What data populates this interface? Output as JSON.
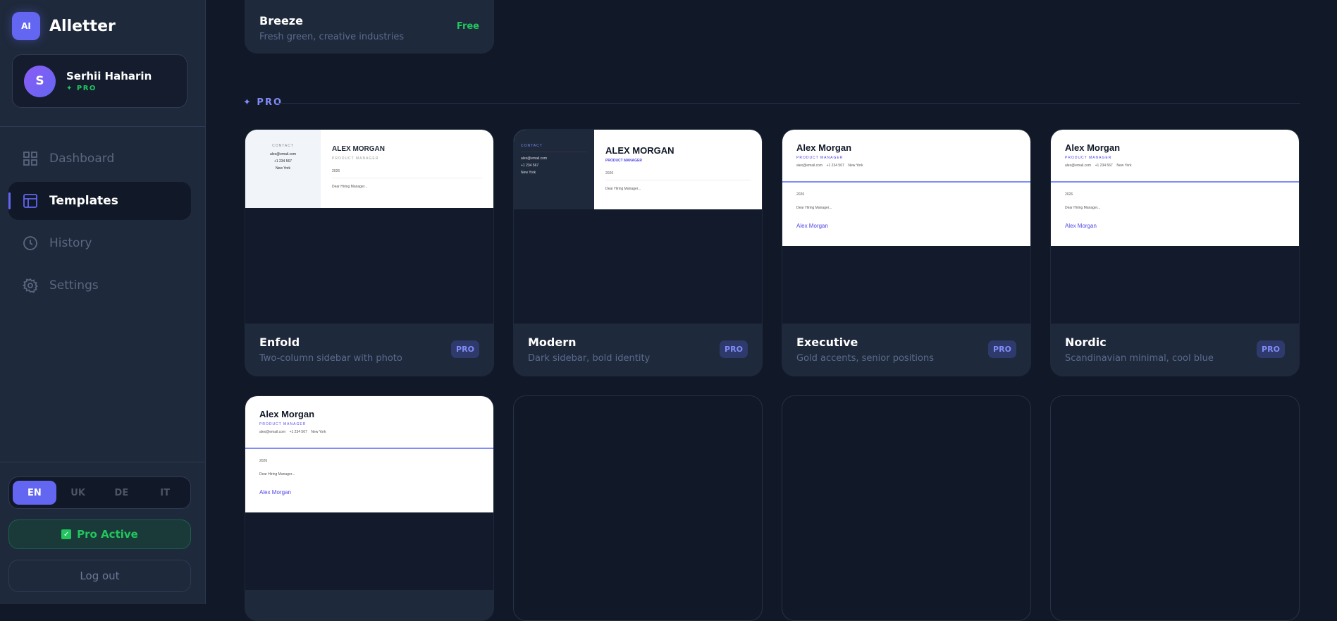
{
  "app": {
    "logo_badge": "AI",
    "name": "Alletter"
  },
  "user": {
    "initial": "S",
    "name": "Serhii Haharin",
    "plan": "✦ PRO"
  },
  "nav": [
    {
      "label": "Dashboard",
      "icon": "grid-icon"
    },
    {
      "label": "Templates",
      "icon": "layout-icon",
      "active": true
    },
    {
      "label": "History",
      "icon": "clock-icon"
    },
    {
      "label": "Settings",
      "icon": "gear-icon"
    }
  ],
  "languages": [
    "EN",
    "UK",
    "DE",
    "IT"
  ],
  "active_language": "EN",
  "pro_active_label": "Pro Active",
  "logout_label": "Log out",
  "free_card": {
    "title": "Breeze",
    "desc": "Fresh green, creative industries",
    "badge": "Free"
  },
  "section_pro": "✦ PRO",
  "preview": {
    "contact": "CONTACT",
    "email": "alex@email.com",
    "phone": "+1 234 567",
    "city": "New York",
    "name_upper": "ALEX MORGAN",
    "name": "Alex Morgan",
    "role": "PRODUCT MANAGER",
    "date": "2026",
    "greeting": "Dear Hiring Manager...",
    "signature": "Alex Morgan"
  },
  "templates": [
    {
      "title": "Enfold",
      "desc": "Two-column sidebar with photo",
      "badge": "PRO"
    },
    {
      "title": "Modern",
      "desc": "Dark sidebar, bold identity",
      "badge": "PRO"
    },
    {
      "title": "Executive",
      "desc": "Gold accents, senior positions",
      "badge": "PRO"
    },
    {
      "title": "Nordic",
      "desc": "Scandinavian minimal, cool blue",
      "badge": "PRO"
    }
  ],
  "colors": {
    "accent": "#6366f1",
    "success": "#22c55e",
    "background": "#111827",
    "sidebar": "#1e293b"
  }
}
